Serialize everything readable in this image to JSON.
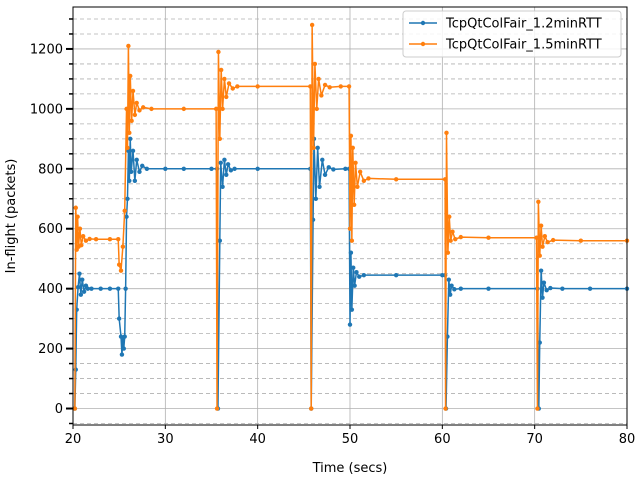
{
  "chart_data": {
    "type": "line",
    "xlabel": "Time (secs)",
    "ylabel": "In-flight (packets)",
    "xlim": [
      20,
      80
    ],
    "ylim": [
      -55,
      1340
    ],
    "x_ticks": [
      20,
      30,
      40,
      50,
      60,
      70,
      80
    ],
    "y_ticks": [
      0,
      200,
      400,
      600,
      800,
      1000,
      1200
    ],
    "grid": "major solid, minor dashed",
    "legend_position": "top-right",
    "series": [
      {
        "name": "TcpQtColFair_1.2minRTT",
        "color": "#1f77b4",
        "points": [
          [
            20.2,
            0
          ],
          [
            20.3,
            130
          ],
          [
            20.4,
            330
          ],
          [
            20.55,
            405
          ],
          [
            20.7,
            450
          ],
          [
            20.85,
            380
          ],
          [
            21.0,
            430
          ],
          [
            21.2,
            390
          ],
          [
            21.4,
            410
          ],
          [
            21.6,
            400
          ],
          [
            22,
            400
          ],
          [
            23,
            400
          ],
          [
            24,
            400
          ],
          [
            24.9,
            400
          ],
          [
            25.0,
            300
          ],
          [
            25.2,
            240
          ],
          [
            25.3,
            180
          ],
          [
            25.4,
            230
          ],
          [
            25.5,
            200
          ],
          [
            25.6,
            240
          ],
          [
            25.7,
            400
          ],
          [
            25.8,
            640
          ],
          [
            25.9,
            700
          ],
          [
            26.0,
            860
          ],
          [
            26.1,
            760
          ],
          [
            26.2,
            900
          ],
          [
            26.3,
            790
          ],
          [
            26.5,
            860
          ],
          [
            26.7,
            760
          ],
          [
            26.9,
            830
          ],
          [
            27.2,
            790
          ],
          [
            27.5,
            810
          ],
          [
            28,
            800
          ],
          [
            30,
            800
          ],
          [
            32,
            800
          ],
          [
            35,
            800
          ],
          [
            35.6,
            800
          ],
          [
            35.7,
            0
          ],
          [
            35.9,
            560
          ],
          [
            36.0,
            820
          ],
          [
            36.2,
            740
          ],
          [
            36.4,
            830
          ],
          [
            36.6,
            780
          ],
          [
            36.8,
            815
          ],
          [
            37.1,
            795
          ],
          [
            37.5,
            800
          ],
          [
            40,
            800
          ],
          [
            45.7,
            800
          ],
          [
            45.8,
            0
          ],
          [
            46.0,
            630
          ],
          [
            46.1,
            900
          ],
          [
            46.3,
            700
          ],
          [
            46.5,
            870
          ],
          [
            46.7,
            740
          ],
          [
            47.0,
            830
          ],
          [
            47.3,
            780
          ],
          [
            47.7,
            805
          ],
          [
            48.2,
            798
          ],
          [
            49.5,
            800
          ],
          [
            49.9,
            800
          ],
          [
            50.0,
            280
          ],
          [
            50.1,
            520
          ],
          [
            50.2,
            330
          ],
          [
            50.35,
            470
          ],
          [
            50.5,
            410
          ],
          [
            50.7,
            455
          ],
          [
            51.0,
            440
          ],
          [
            51.5,
            445
          ],
          [
            55,
            445
          ],
          [
            60,
            445
          ],
          [
            60.3,
            445
          ],
          [
            60.4,
            0
          ],
          [
            60.55,
            240
          ],
          [
            60.7,
            430
          ],
          [
            60.85,
            380
          ],
          [
            61.0,
            410
          ],
          [
            61.3,
            398
          ],
          [
            62,
            400
          ],
          [
            65,
            400
          ],
          [
            70.3,
            400
          ],
          [
            70.45,
            0
          ],
          [
            70.55,
            220
          ],
          [
            70.7,
            460
          ],
          [
            70.85,
            370
          ],
          [
            71.0,
            420
          ],
          [
            71.3,
            395
          ],
          [
            71.7,
            402
          ],
          [
            73,
            400
          ],
          [
            76,
            400
          ],
          [
            80,
            400
          ]
        ]
      },
      {
        "name": "TcpQtColFair_1.5minRTT",
        "color": "#ff7f0e",
        "points": [
          [
            20.2,
            0
          ],
          [
            20.3,
            670
          ],
          [
            20.4,
            530
          ],
          [
            20.5,
            640
          ],
          [
            20.6,
            540
          ],
          [
            20.75,
            600
          ],
          [
            20.9,
            545
          ],
          [
            21.1,
            575
          ],
          [
            21.4,
            560
          ],
          [
            21.8,
            566
          ],
          [
            22.5,
            565
          ],
          [
            24,
            565
          ],
          [
            24.9,
            565
          ],
          [
            25.0,
            480
          ],
          [
            25.2,
            460
          ],
          [
            25.4,
            540
          ],
          [
            25.6,
            660
          ],
          [
            25.8,
            1000
          ],
          [
            25.9,
            870
          ],
          [
            26.0,
            1210
          ],
          [
            26.1,
            920
          ],
          [
            26.2,
            1110
          ],
          [
            26.35,
            960
          ],
          [
            26.5,
            1060
          ],
          [
            26.7,
            980
          ],
          [
            26.9,
            1020
          ],
          [
            27.2,
            995
          ],
          [
            27.6,
            1005
          ],
          [
            28.5,
            1000
          ],
          [
            32,
            1000
          ],
          [
            35.5,
            1000
          ],
          [
            35.6,
            0
          ],
          [
            35.75,
            1190
          ],
          [
            35.9,
            900
          ],
          [
            36.05,
            1130
          ],
          [
            36.2,
            1000
          ],
          [
            36.4,
            1100
          ],
          [
            36.6,
            1040
          ],
          [
            36.9,
            1085
          ],
          [
            37.3,
            1068
          ],
          [
            37.8,
            1075
          ],
          [
            40,
            1075
          ],
          [
            45.7,
            1075
          ],
          [
            45.8,
            0
          ],
          [
            45.9,
            1280
          ],
          [
            46.05,
            870
          ],
          [
            46.2,
            1150
          ],
          [
            46.4,
            1000
          ],
          [
            46.6,
            1100
          ],
          [
            46.9,
            1045
          ],
          [
            47.3,
            1080
          ],
          [
            47.8,
            1072
          ],
          [
            49,
            1075
          ],
          [
            49.9,
            1075
          ],
          [
            50.0,
            600
          ],
          [
            50.1,
            910
          ],
          [
            50.2,
            560
          ],
          [
            50.3,
            870
          ],
          [
            50.45,
            680
          ],
          [
            50.6,
            820
          ],
          [
            50.8,
            740
          ],
          [
            51.1,
            790
          ],
          [
            51.5,
            760
          ],
          [
            52,
            768
          ],
          [
            55,
            765
          ],
          [
            60.3,
            765
          ],
          [
            60.35,
            0
          ],
          [
            60.45,
            920
          ],
          [
            60.6,
            520
          ],
          [
            60.75,
            640
          ],
          [
            60.9,
            560
          ],
          [
            61.1,
            590
          ],
          [
            61.4,
            565
          ],
          [
            62,
            572
          ],
          [
            65,
            570
          ],
          [
            70.2,
            570
          ],
          [
            70.3,
            0
          ],
          [
            70.4,
            690
          ],
          [
            70.55,
            510
          ],
          [
            70.7,
            610
          ],
          [
            70.85,
            540
          ],
          [
            71.1,
            575
          ],
          [
            71.4,
            555
          ],
          [
            72,
            562
          ],
          [
            75,
            560
          ],
          [
            80,
            560
          ]
        ]
      }
    ]
  }
}
